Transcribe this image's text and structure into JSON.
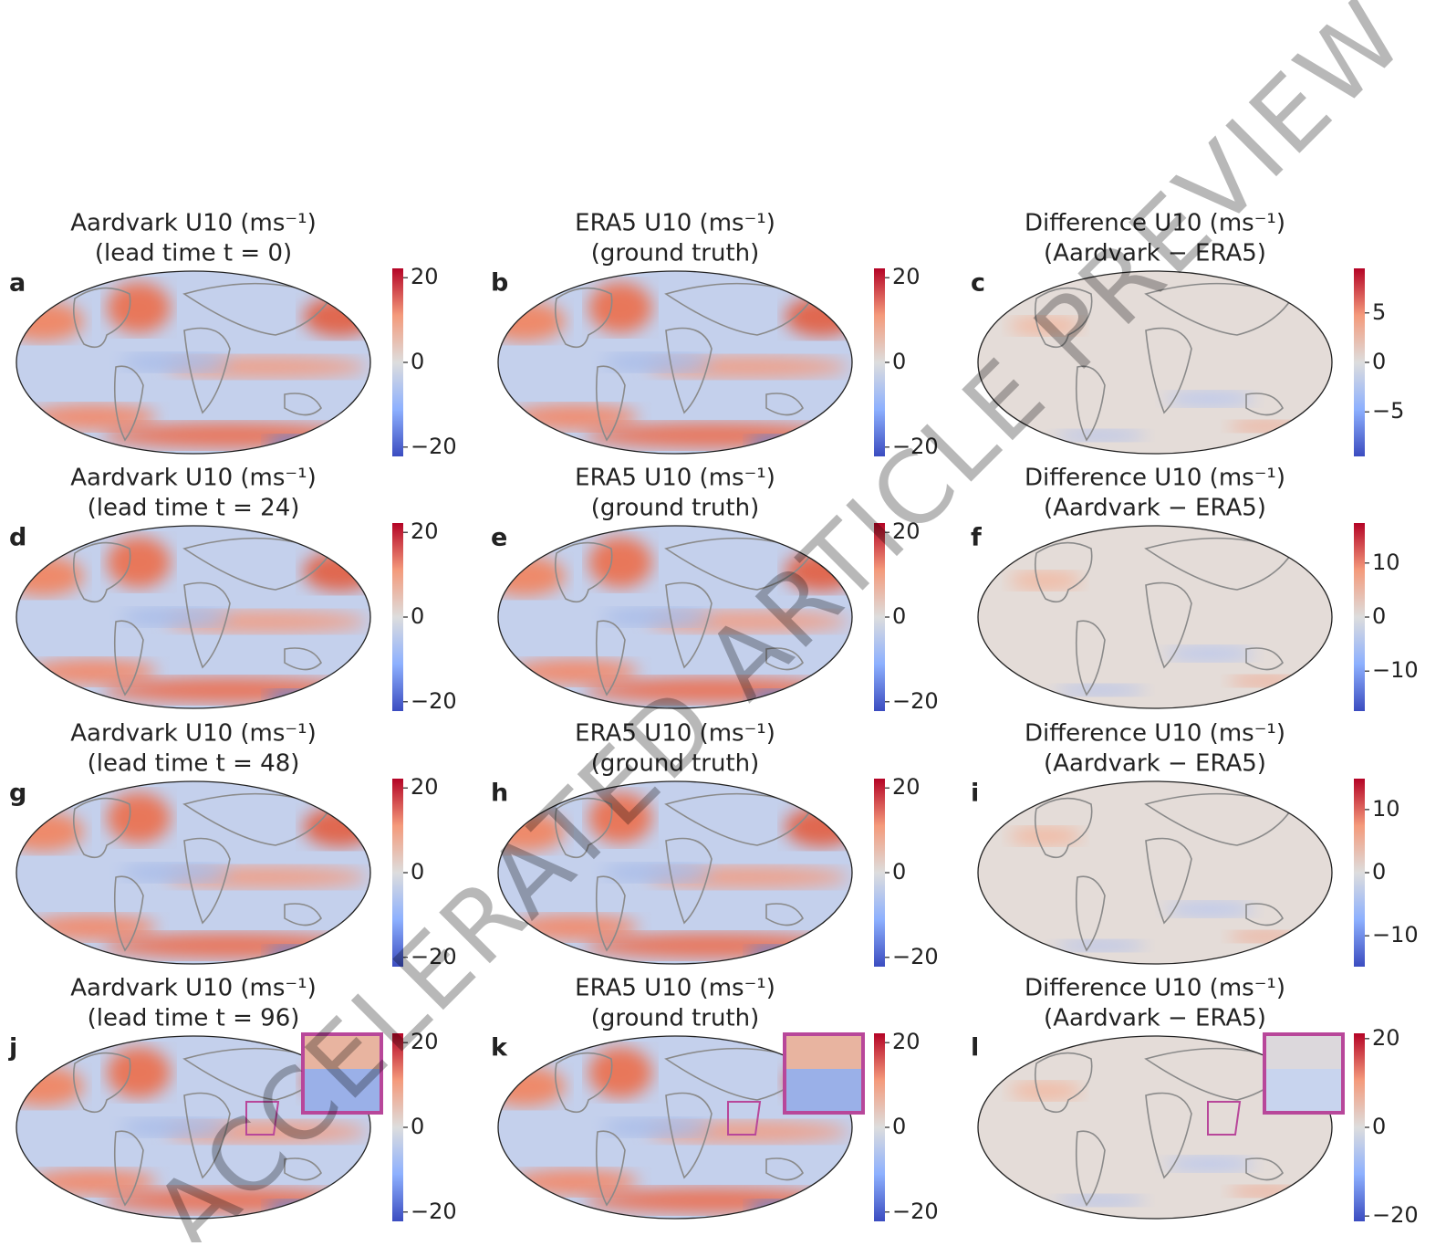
{
  "figure": {
    "watermark": "ACCELERATED ARTICLE PREVIEW",
    "panels": [
      {
        "label": "a",
        "title": "Aardvark U10 (ms⁻¹)",
        "subtitle": "(lead time t = 0)",
        "colorbar": {
          "lim": [
            -22.2,
            22.2
          ],
          "ticks": [
            {
              "value": 20,
              "label": "20"
            },
            {
              "value": 0,
              "label": "0"
            },
            {
              "value": -20,
              "label": "−20"
            }
          ]
        }
      },
      {
        "label": "b",
        "title": "ERA5 U10 (ms⁻¹)",
        "subtitle": "(ground truth)",
        "colorbar": {
          "lim": [
            -22.2,
            22.2
          ],
          "ticks": [
            {
              "value": 20,
              "label": "20"
            },
            {
              "value": 0,
              "label": "0"
            },
            {
              "value": -20,
              "label": "−20"
            }
          ]
        }
      },
      {
        "label": "c",
        "title": "Difference U10 (ms⁻¹)",
        "subtitle": "(Aardvark − ERA5)",
        "colorbar": {
          "lim": [
            -9.5,
            9.5
          ],
          "ticks": [
            {
              "value": 5,
              "label": "5"
            },
            {
              "value": 0,
              "label": "0"
            },
            {
              "value": -5,
              "label": "−5"
            }
          ]
        }
      },
      {
        "label": "d",
        "title": "Aardvark U10 (ms⁻¹)",
        "subtitle": "(lead time t = 24)",
        "colorbar": {
          "lim": [
            -22.2,
            22.2
          ],
          "ticks": [
            {
              "value": 20,
              "label": "20"
            },
            {
              "value": 0,
              "label": "0"
            },
            {
              "value": -20,
              "label": "−20"
            }
          ]
        }
      },
      {
        "label": "e",
        "title": "ERA5 U10 (ms⁻¹)",
        "subtitle": "(ground truth)",
        "colorbar": {
          "lim": [
            -22.2,
            22.2
          ],
          "ticks": [
            {
              "value": 20,
              "label": "20"
            },
            {
              "value": 0,
              "label": "0"
            },
            {
              "value": -20,
              "label": "−20"
            }
          ]
        }
      },
      {
        "label": "f",
        "title": "Difference U10 (ms⁻¹)",
        "subtitle": "(Aardvark − ERA5)",
        "colorbar": {
          "lim": [
            -17.4,
            17.4
          ],
          "ticks": [
            {
              "value": 10,
              "label": "10"
            },
            {
              "value": 0,
              "label": "0"
            },
            {
              "value": -10,
              "label": "−10"
            }
          ]
        }
      },
      {
        "label": "g",
        "title": "Aardvark U10 (ms⁻¹)",
        "subtitle": "(lead time t = 48)",
        "colorbar": {
          "lim": [
            -22.2,
            22.2
          ],
          "ticks": [
            {
              "value": 20,
              "label": "20"
            },
            {
              "value": 0,
              "label": "0"
            },
            {
              "value": -20,
              "label": "−20"
            }
          ]
        }
      },
      {
        "label": "h",
        "title": "ERA5 U10 (ms⁻¹)",
        "subtitle": "(ground truth)",
        "colorbar": {
          "lim": [
            -22.2,
            22.2
          ],
          "ticks": [
            {
              "value": 20,
              "label": "20"
            },
            {
              "value": 0,
              "label": "0"
            },
            {
              "value": -20,
              "label": "−20"
            }
          ]
        }
      },
      {
        "label": "i",
        "title": "Difference U10 (ms⁻¹)",
        "subtitle": "(Aardvark − ERA5)",
        "colorbar": {
          "lim": [
            -14.9,
            14.9
          ],
          "ticks": [
            {
              "value": 10,
              "label": "10"
            },
            {
              "value": 0,
              "label": "0"
            },
            {
              "value": -10,
              "label": "−10"
            }
          ]
        }
      },
      {
        "label": "j",
        "title": "Aardvark U10 (ms⁻¹)",
        "subtitle": "(lead time t = 96)",
        "inset": true,
        "colorbar": {
          "lim": [
            -22.2,
            22.2
          ],
          "ticks": [
            {
              "value": 20,
              "label": "20"
            },
            {
              "value": 0,
              "label": "0"
            },
            {
              "value": -20,
              "label": "−20"
            }
          ]
        }
      },
      {
        "label": "k",
        "title": "ERA5 U10 (ms⁻¹)",
        "subtitle": "(ground truth)",
        "inset": true,
        "colorbar": {
          "lim": [
            -22.2,
            22.2
          ],
          "ticks": [
            {
              "value": 20,
              "label": "20"
            },
            {
              "value": 0,
              "label": "0"
            },
            {
              "value": -20,
              "label": "−20"
            }
          ]
        }
      },
      {
        "label": "l",
        "title": "Difference U10 (ms⁻¹)",
        "subtitle": "(Aardvark − ERA5)",
        "inset": true,
        "colorbar": {
          "lim": [
            -21.2,
            21.2
          ],
          "ticks": [
            {
              "value": 20,
              "label": "20"
            },
            {
              "value": 0,
              "label": "0"
            },
            {
              "value": -20,
              "label": "−20"
            }
          ]
        }
      }
    ]
  }
}
